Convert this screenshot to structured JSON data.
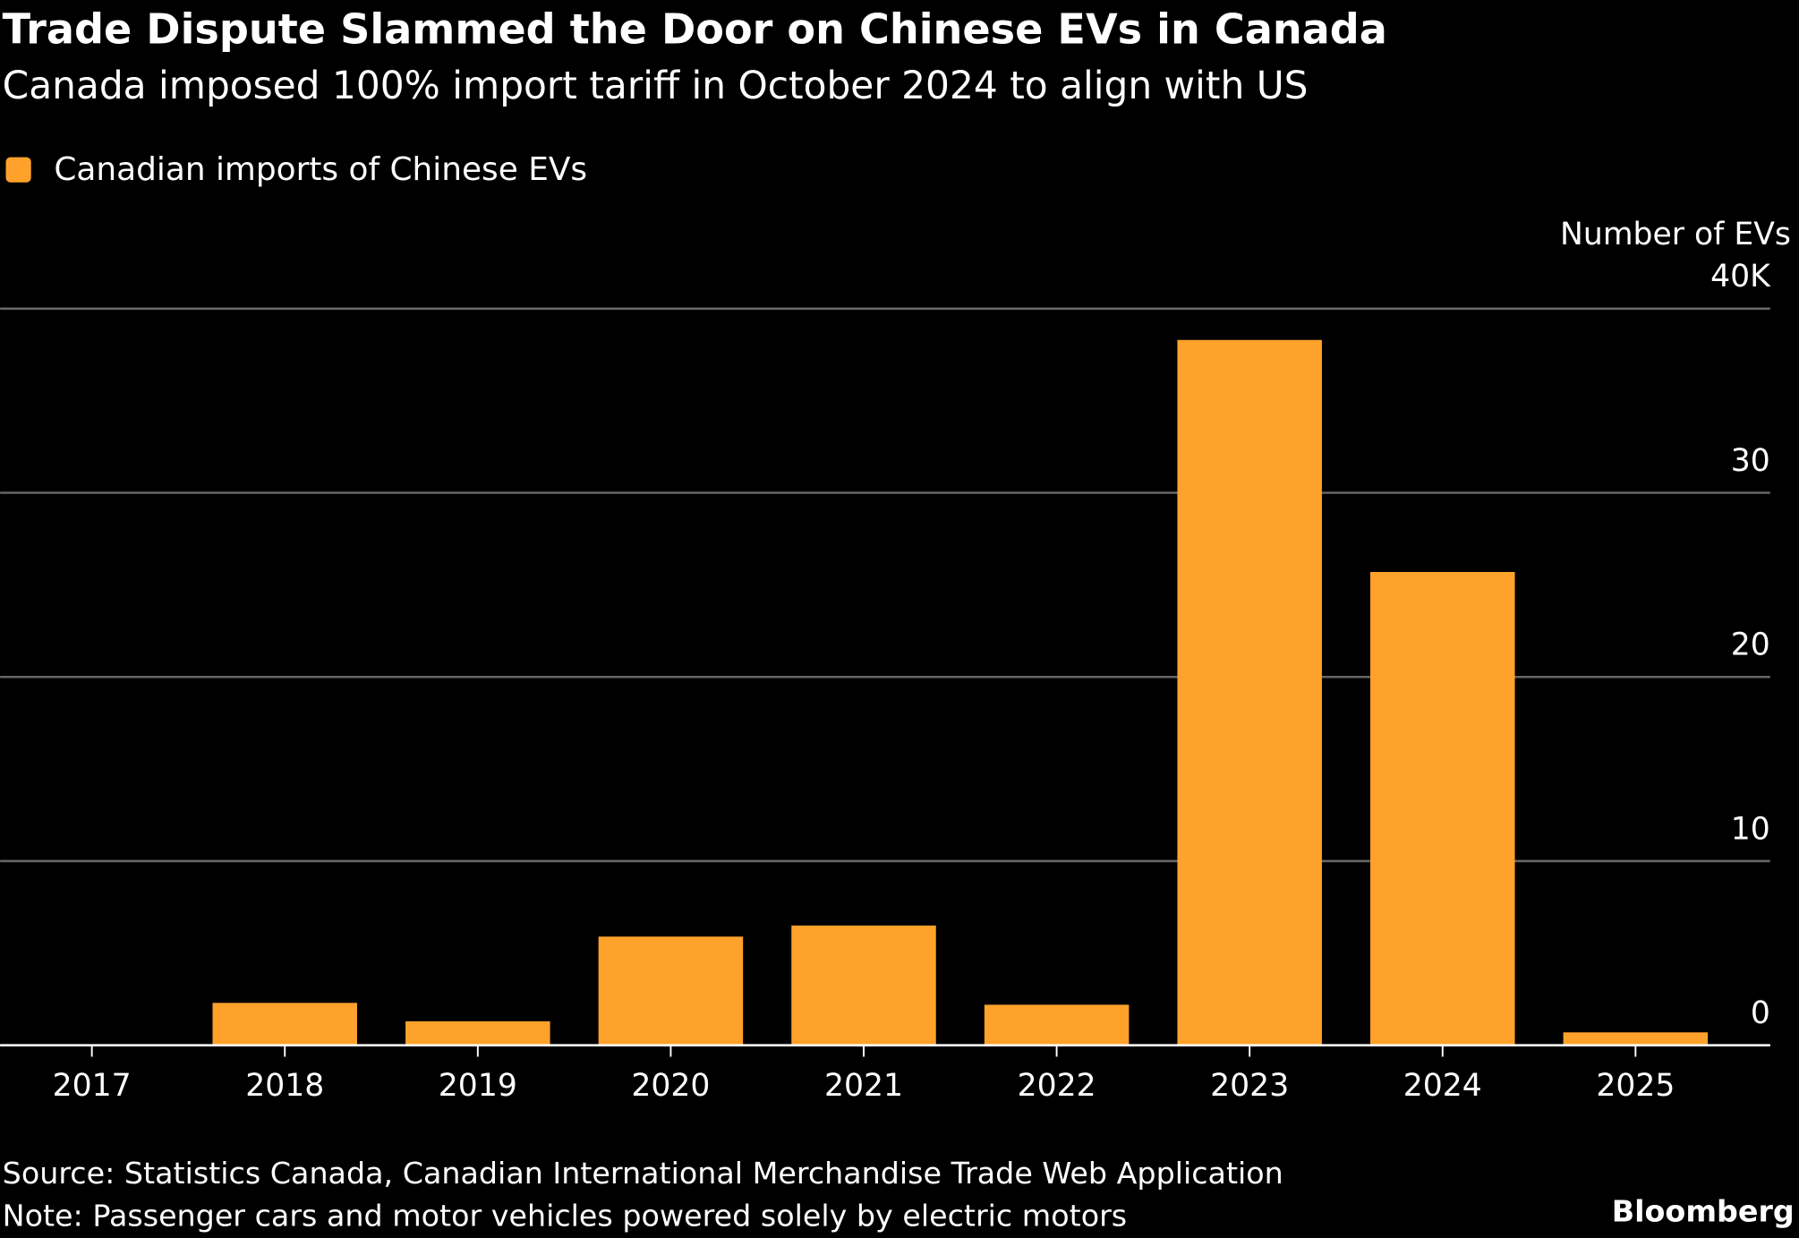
{
  "chart_data": {
    "type": "bar",
    "title": "Trade Dispute Slammed the Door on Chinese EVs in Canada",
    "subtitle": "Canada imposed 100% import tariff in October 2024 to align with US",
    "y_axis_label": "Number of EVs",
    "categories": [
      "2017",
      "2018",
      "2019",
      "2020",
      "2021",
      "2022",
      "2023",
      "2024",
      "2025"
    ],
    "series": [
      {
        "name": "Canadian imports of Chinese EVs",
        "color": "#ffa22b",
        "values": [
          0,
          2.3,
          1.3,
          5.9,
          6.5,
          2.2,
          38.3,
          25.7,
          0.7
        ]
      }
    ],
    "ylim": [
      0,
      40
    ],
    "yticks": [
      0,
      10,
      20,
      30,
      {
        "value": 40,
        "label": "40K"
      }
    ],
    "grid": true,
    "source": "Source: Statistics Canada, Canadian International Merchandise Trade Web Application",
    "note": "Note: Passenger cars and motor vehicles powered solely by electric motors",
    "brand": "Bloomberg"
  }
}
